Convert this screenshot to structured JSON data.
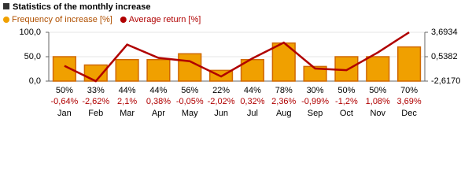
{
  "chart_data": {
    "type": "bar",
    "title": "Statistics of the monthly increase",
    "categories": [
      "Jan",
      "Feb",
      "Mar",
      "Apr",
      "May",
      "Jun",
      "Jul",
      "Aug",
      "Sep",
      "Oct",
      "Nov",
      "Dec"
    ],
    "series": [
      {
        "name": "Frequency of increase [%]",
        "type": "bar",
        "color": "#f0a000",
        "border": "#d06800",
        "values": [
          50,
          33,
          44,
          44,
          56,
          22,
          44,
          78,
          30,
          50,
          50,
          70
        ],
        "value_labels": [
          "50%",
          "33%",
          "44%",
          "44%",
          "56%",
          "22%",
          "44%",
          "78%",
          "30%",
          "50%",
          "50%",
          "70%"
        ]
      },
      {
        "name": "Average return [%]",
        "type": "line",
        "axis": "y2",
        "color": "#b00000",
        "values": [
          -0.64,
          -2.62,
          2.1,
          0.38,
          -0.05,
          -2.02,
          0.32,
          2.36,
          -0.99,
          -1.2,
          1.08,
          3.69
        ],
        "value_labels": [
          "-0,64%",
          "-2,62%",
          "2,1%",
          "0,38%",
          "-0,05%",
          "-2,02%",
          "0,32%",
          "2,36%",
          "-0,99%",
          "-1,2%",
          "1,08%",
          "3,69%"
        ]
      }
    ],
    "ylim": [
      0,
      100
    ],
    "yticks": [
      {
        "value": 0,
        "label": "0,0"
      },
      {
        "value": 50,
        "label": "50,0"
      },
      {
        "value": 100,
        "label": "100,0"
      }
    ],
    "y2lim": [
      -2.617,
      3.6934
    ],
    "y2ticks": [
      {
        "value": -2.617,
        "label": "-2,6170"
      },
      {
        "value": 0.5382,
        "label": "0,5382"
      },
      {
        "value": 3.6934,
        "label": "3,6934"
      }
    ],
    "grid": true
  }
}
